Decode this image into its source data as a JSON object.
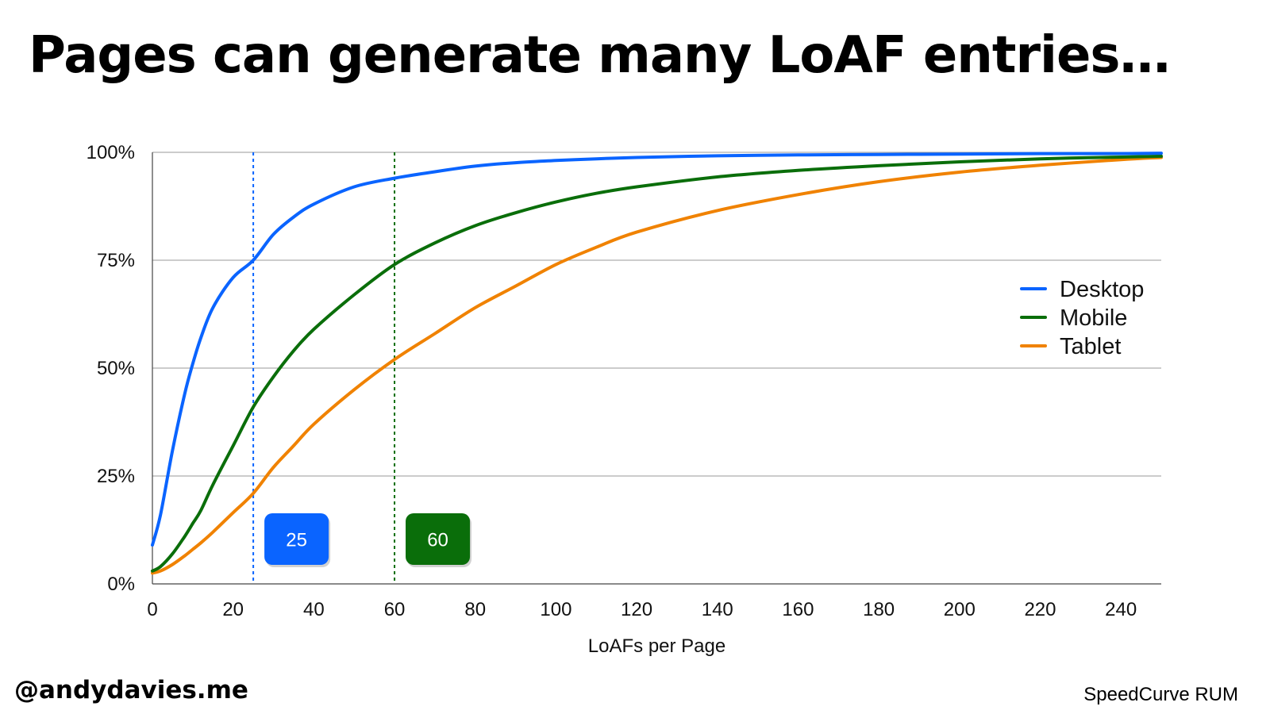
{
  "slide": {
    "title": "Pages can generate many LoAF entries…",
    "handle": "@andydavies.me",
    "source": "SpeedCurve RUM"
  },
  "chart_data": {
    "type": "line",
    "title": "",
    "xlabel": "LoAFs per Page",
    "ylabel": "",
    "xlim": [
      0,
      250
    ],
    "ylim": [
      0,
      100
    ],
    "x_ticks": [
      0,
      20,
      40,
      60,
      80,
      100,
      120,
      140,
      160,
      180,
      200,
      220,
      240
    ],
    "y_ticks": [
      0,
      25,
      50,
      75,
      100
    ],
    "y_tick_labels": [
      "0%",
      "25%",
      "50%",
      "75%",
      "100%"
    ],
    "grid": "horizontal",
    "legend": "right",
    "x": [
      0,
      2,
      5,
      8,
      10,
      12,
      15,
      20,
      25,
      30,
      35,
      40,
      50,
      60,
      70,
      80,
      90,
      100,
      110,
      120,
      140,
      160,
      180,
      200,
      220,
      240,
      250
    ],
    "series": [
      {
        "name": "Desktop",
        "color": "#0a64ff",
        "values": [
          9,
          16,
          31,
          44,
          51,
          57,
          64,
          71,
          75,
          81,
          85,
          88,
          92,
          94,
          95.5,
          96.8,
          97.6,
          98.1,
          98.5,
          98.8,
          99.2,
          99.4,
          99.5,
          99.6,
          99.7,
          99.7,
          99.8
        ]
      },
      {
        "name": "Mobile",
        "color": "#0a6e0a",
        "values": [
          3,
          4,
          7,
          11,
          14,
          17,
          23,
          32,
          41,
          48,
          54,
          59,
          67,
          74,
          79,
          83,
          86,
          88.5,
          90.5,
          92,
          94.3,
          95.8,
          96.9,
          97.8,
          98.5,
          98.9,
          99.1
        ]
      },
      {
        "name": "Tablet",
        "color": "#f08200",
        "values": [
          2.5,
          3,
          4.5,
          6.5,
          8,
          9.5,
          12,
          16.5,
          21,
          27,
          32,
          37,
          45,
          52,
          58,
          64,
          69,
          74,
          78,
          81.5,
          86.5,
          90.2,
          93.2,
          95.4,
          97,
          98.3,
          98.8
        ]
      }
    ],
    "reference_lines": [
      {
        "x": 25,
        "color": "#0a64ff",
        "label": "25"
      },
      {
        "x": 60,
        "color": "#0a6e0a",
        "label": "60"
      }
    ]
  }
}
